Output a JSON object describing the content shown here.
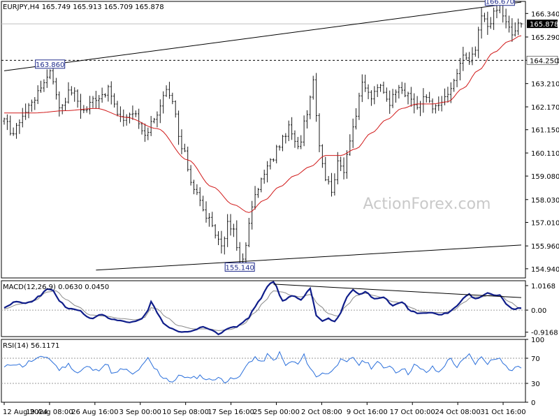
{
  "chart_data": [
    {
      "type": "ohlc",
      "panel": "price",
      "title": "EURJPY,H4  165.749 165.913 165.709 165.878",
      "symbol": "EURJPY",
      "timeframe": "H4",
      "ohlc_last": {
        "open": 165.749,
        "high": 165.913,
        "low": 165.709,
        "close": 165.878
      },
      "ylim": [
        154.53,
        166.88
      ],
      "y_ticks": [
        "166.340",
        "165.290",
        "164.250",
        "163.210",
        "162.170",
        "161.150",
        "160.110",
        "159.080",
        "158.030",
        "157.010",
        "155.960",
        "154.940"
      ],
      "x_ticks": [
        "12 Aug 2024",
        "19 Aug 08:00",
        "26 Aug 16:00",
        "3 Sep 00:00",
        "10 Sep 08:00",
        "17 Sep 16:00",
        "25 Sep 00:00",
        "2 Oct 08:00",
        "9 Oct 16:00",
        "17 Oct 00:00",
        "24 Oct 08:00",
        "31 Oct 16:00"
      ],
      "current_price": 165.878,
      "current_price_label": "165.878",
      "horizontal_line": 164.25,
      "horizontal_line_label": "164.250",
      "price_anchors": [
        [
          0,
          161.5
        ],
        [
          3,
          161.0
        ],
        [
          6,
          161.8
        ],
        [
          10,
          162.6
        ],
        [
          14,
          163.5
        ],
        [
          15,
          163.86
        ],
        [
          18,
          162.2
        ],
        [
          22,
          162.9
        ],
        [
          26,
          162.0
        ],
        [
          30,
          162.6
        ],
        [
          34,
          162.9
        ],
        [
          38,
          161.6
        ],
        [
          42,
          161.9
        ],
        [
          46,
          161.0
        ],
        [
          50,
          161.9
        ],
        [
          53,
          162.8
        ],
        [
          55,
          162.3
        ],
        [
          58,
          160.3
        ],
        [
          62,
          158.6
        ],
        [
          66,
          157.3
        ],
        [
          69,
          156.5
        ],
        [
          71,
          156.0
        ],
        [
          73,
          156.9
        ],
        [
          75,
          156.6
        ],
        [
          77,
          155.14
        ],
        [
          79,
          155.9
        ],
        [
          81,
          157.8
        ],
        [
          84,
          158.9
        ],
        [
          87,
          159.7
        ],
        [
          90,
          160.5
        ],
        [
          93,
          161.2
        ],
        [
          96,
          160.3
        ],
        [
          99,
          162.0
        ],
        [
          101,
          163.4
        ],
        [
          103,
          160.5
        ],
        [
          105,
          159.0
        ],
        [
          107,
          158.5
        ],
        [
          109,
          159.6
        ],
        [
          111,
          159.4
        ],
        [
          113,
          160.8
        ],
        [
          115,
          161.8
        ],
        [
          117,
          163.2
        ],
        [
          120,
          162.6
        ],
        [
          123,
          163.1
        ],
        [
          126,
          162.4
        ],
        [
          129,
          163.2
        ],
        [
          132,
          162.6
        ],
        [
          135,
          162.2
        ],
        [
          138,
          162.6
        ],
        [
          141,
          162.1
        ],
        [
          144,
          162.5
        ],
        [
          147,
          163.2
        ],
        [
          150,
          164.5
        ],
        [
          152,
          164.1
        ],
        [
          154,
          164.7
        ],
        [
          156,
          166.2
        ],
        [
          158,
          165.8
        ],
        [
          160,
          166.3
        ],
        [
          162,
          166.67
        ],
        [
          164,
          165.9
        ],
        [
          166,
          165.4
        ],
        [
          168,
          165.8
        ],
        [
          169,
          165.878
        ]
      ],
      "sma_anchors": [
        [
          0,
          161.9
        ],
        [
          10,
          161.9
        ],
        [
          20,
          162.0
        ],
        [
          30,
          162.1
        ],
        [
          40,
          161.7
        ],
        [
          50,
          161.2
        ],
        [
          60,
          159.8
        ],
        [
          68,
          158.6
        ],
        [
          75,
          157.8
        ],
        [
          80,
          157.45
        ],
        [
          85,
          158.0
        ],
        [
          90,
          158.6
        ],
        [
          95,
          159.1
        ],
        [
          100,
          159.5
        ],
        [
          105,
          160.0
        ],
        [
          110,
          160.0
        ],
        [
          115,
          160.3
        ],
        [
          120,
          161.0
        ],
        [
          125,
          161.6
        ],
        [
          130,
          162.1
        ],
        [
          135,
          162.3
        ],
        [
          140,
          162.3
        ],
        [
          145,
          162.4
        ],
        [
          150,
          163.0
        ],
        [
          155,
          163.8
        ],
        [
          160,
          164.6
        ],
        [
          165,
          165.1
        ],
        [
          169,
          165.35
        ]
      ],
      "trendlines": [
        {
          "x0": 0,
          "y0": 163.78,
          "x1": 169,
          "y1": 166.85
        },
        {
          "x0": 30,
          "y0": 154.88,
          "x1": 169,
          "y1": 156.0
        }
      ],
      "annotations": [
        {
          "label": "163.860",
          "x": 15,
          "y": 163.86
        },
        {
          "label": "166.670",
          "x": 162,
          "y": 166.67
        },
        {
          "label": "155.140",
          "x": 77,
          "y": 155.14
        }
      ],
      "watermark": "ActionForex.com",
      "colors": {
        "bars": "#1a1a1a",
        "sma": "#d11a1a",
        "background": "#ffffff",
        "grid": "#bfbfbf"
      }
    },
    {
      "type": "line",
      "panel": "macd",
      "title": "MACD(12,26,9) 0.0630 0.0450",
      "ylim": [
        -1.1,
        1.22
      ],
      "y_ticks": [
        "1.0168",
        "0.00",
        "-0.9168"
      ],
      "zero_line": 0.0,
      "macd_anchors": [
        [
          0,
          0.1
        ],
        [
          4,
          0.35
        ],
        [
          8,
          0.3
        ],
        [
          12,
          0.6
        ],
        [
          14,
          0.9
        ],
        [
          16,
          0.8
        ],
        [
          18,
          0.4
        ],
        [
          21,
          0.05
        ],
        [
          24,
          0.0
        ],
        [
          28,
          -0.35
        ],
        [
          32,
          -0.2
        ],
        [
          35,
          -0.4
        ],
        [
          38,
          -0.45
        ],
        [
          42,
          -0.5
        ],
        [
          45,
          -0.35
        ],
        [
          47,
          0.0
        ],
        [
          48,
          0.35
        ],
        [
          50,
          -0.1
        ],
        [
          52,
          -0.55
        ],
        [
          55,
          -0.8
        ],
        [
          58,
          -0.9
        ],
        [
          62,
          -0.85
        ],
        [
          65,
          -0.7
        ],
        [
          68,
          -0.85
        ],
        [
          70,
          -1.0
        ],
        [
          73,
          -0.75
        ],
        [
          76,
          -0.7
        ],
        [
          78,
          -0.5
        ],
        [
          80,
          -0.3
        ],
        [
          82,
          0.15
        ],
        [
          84,
          0.5
        ],
        [
          86,
          1.0
        ],
        [
          88,
          1.2
        ],
        [
          91,
          0.4
        ],
        [
          94,
          0.6
        ],
        [
          97,
          0.45
        ],
        [
          100,
          0.9
        ],
        [
          102,
          -0.2
        ],
        [
          104,
          -0.45
        ],
        [
          106,
          -0.35
        ],
        [
          108,
          -0.5
        ],
        [
          110,
          -0.1
        ],
        [
          112,
          0.55
        ],
        [
          114,
          0.85
        ],
        [
          116,
          0.65
        ],
        [
          118,
          0.75
        ],
        [
          121,
          0.45
        ],
        [
          124,
          0.55
        ],
        [
          127,
          0.2
        ],
        [
          130,
          0.35
        ],
        [
          133,
          -0.05
        ],
        [
          136,
          -0.15
        ],
        [
          139,
          -0.1
        ],
        [
          142,
          -0.2
        ],
        [
          145,
          -0.1
        ],
        [
          148,
          0.15
        ],
        [
          150,
          0.5
        ],
        [
          152,
          0.65
        ],
        [
          154,
          0.45
        ],
        [
          156,
          0.55
        ],
        [
          158,
          0.7
        ],
        [
          160,
          0.65
        ],
        [
          162,
          0.62
        ],
        [
          164,
          0.25
        ],
        [
          166,
          0.05
        ],
        [
          169,
          0.063
        ]
      ],
      "signal_anchors": [
        [
          0,
          0.05
        ],
        [
          5,
          0.25
        ],
        [
          10,
          0.4
        ],
        [
          14,
          0.75
        ],
        [
          17,
          0.8
        ],
        [
          20,
          0.45
        ],
        [
          24,
          0.15
        ],
        [
          28,
          -0.2
        ],
        [
          33,
          -0.25
        ],
        [
          38,
          -0.35
        ],
        [
          43,
          -0.4
        ],
        [
          46,
          -0.3
        ],
        [
          48,
          0.1
        ],
        [
          50,
          0.05
        ],
        [
          53,
          -0.3
        ],
        [
          57,
          -0.65
        ],
        [
          62,
          -0.78
        ],
        [
          67,
          -0.78
        ],
        [
          70,
          -0.85
        ],
        [
          74,
          -0.8
        ],
        [
          78,
          -0.6
        ],
        [
          82,
          -0.1
        ],
        [
          85,
          0.35
        ],
        [
          88,
          0.8
        ],
        [
          91,
          0.75
        ],
        [
          94,
          0.6
        ],
        [
          97,
          0.55
        ],
        [
          100,
          0.65
        ],
        [
          103,
          0.2
        ],
        [
          106,
          -0.15
        ],
        [
          109,
          -0.25
        ],
        [
          112,
          0.2
        ],
        [
          115,
          0.6
        ],
        [
          118,
          0.7
        ],
        [
          121,
          0.6
        ],
        [
          124,
          0.5
        ],
        [
          127,
          0.35
        ],
        [
          130,
          0.3
        ],
        [
          133,
          0.1
        ],
        [
          136,
          -0.05
        ],
        [
          140,
          -0.1
        ],
        [
          144,
          -0.1
        ],
        [
          147,
          0.0
        ],
        [
          150,
          0.3
        ],
        [
          153,
          0.55
        ],
        [
          156,
          0.55
        ],
        [
          159,
          0.62
        ],
        [
          162,
          0.63
        ],
        [
          165,
          0.35
        ],
        [
          169,
          0.045
        ]
      ],
      "trendline": {
        "x0": 88,
        "y0": 1.08,
        "x1": 169,
        "y1": 0.52
      },
      "colors": {
        "macd": "#0f1d8a",
        "signal": "#8a8a8a",
        "zero": "#a0a0a0"
      }
    },
    {
      "type": "line",
      "panel": "rsi",
      "title": "RSI(14) 56.1171",
      "ylim": [
        0,
        100
      ],
      "y_ticks": [
        "100",
        "70",
        "30",
        "0"
      ],
      "levels": [
        70,
        30
      ],
      "rsi_anchors": [
        [
          0,
          55
        ],
        [
          3,
          62
        ],
        [
          6,
          58
        ],
        [
          9,
          66
        ],
        [
          12,
          70
        ],
        [
          14,
          73
        ],
        [
          16,
          63
        ],
        [
          18,
          52
        ],
        [
          21,
          60
        ],
        [
          24,
          47
        ],
        [
          27,
          56
        ],
        [
          30,
          50
        ],
        [
          33,
          61
        ],
        [
          36,
          45
        ],
        [
          39,
          53
        ],
        [
          42,
          44
        ],
        [
          45,
          56
        ],
        [
          47,
          69
        ],
        [
          49,
          54
        ],
        [
          52,
          40
        ],
        [
          55,
          33
        ],
        [
          58,
          43
        ],
        [
          61,
          37
        ],
        [
          64,
          42
        ],
        [
          67,
          35
        ],
        [
          70,
          40
        ],
        [
          72,
          30
        ],
        [
          74,
          42
        ],
        [
          76,
          35
        ],
        [
          78,
          48
        ],
        [
          80,
          64
        ],
        [
          82,
          72
        ],
        [
          84,
          62
        ],
        [
          86,
          75
        ],
        [
          88,
          66
        ],
        [
          90,
          78
        ],
        [
          92,
          58
        ],
        [
          94,
          65
        ],
        [
          96,
          60
        ],
        [
          98,
          74
        ],
        [
          100,
          55
        ],
        [
          102,
          40
        ],
        [
          104,
          48
        ],
        [
          106,
          44
        ],
        [
          108,
          58
        ],
        [
          110,
          66
        ],
        [
          112,
          62
        ],
        [
          114,
          72
        ],
        [
          116,
          60
        ],
        [
          118,
          66
        ],
        [
          120,
          56
        ],
        [
          122,
          64
        ],
        [
          124,
          53
        ],
        [
          126,
          60
        ],
        [
          128,
          48
        ],
        [
          130,
          55
        ],
        [
          132,
          46
        ],
        [
          134,
          60
        ],
        [
          136,
          52
        ],
        [
          138,
          48
        ],
        [
          140,
          55
        ],
        [
          142,
          47
        ],
        [
          144,
          60
        ],
        [
          146,
          70
        ],
        [
          148,
          56
        ],
        [
          150,
          66
        ],
        [
          152,
          75
        ],
        [
          154,
          62
        ],
        [
          156,
          71
        ],
        [
          158,
          63
        ],
        [
          160,
          68
        ],
        [
          162,
          73
        ],
        [
          164,
          57
        ],
        [
          166,
          50
        ],
        [
          168,
          58
        ],
        [
          169,
          56.1171
        ]
      ],
      "colors": {
        "rsi": "#2a6fdb",
        "levels": "#9a9a9a"
      }
    }
  ]
}
